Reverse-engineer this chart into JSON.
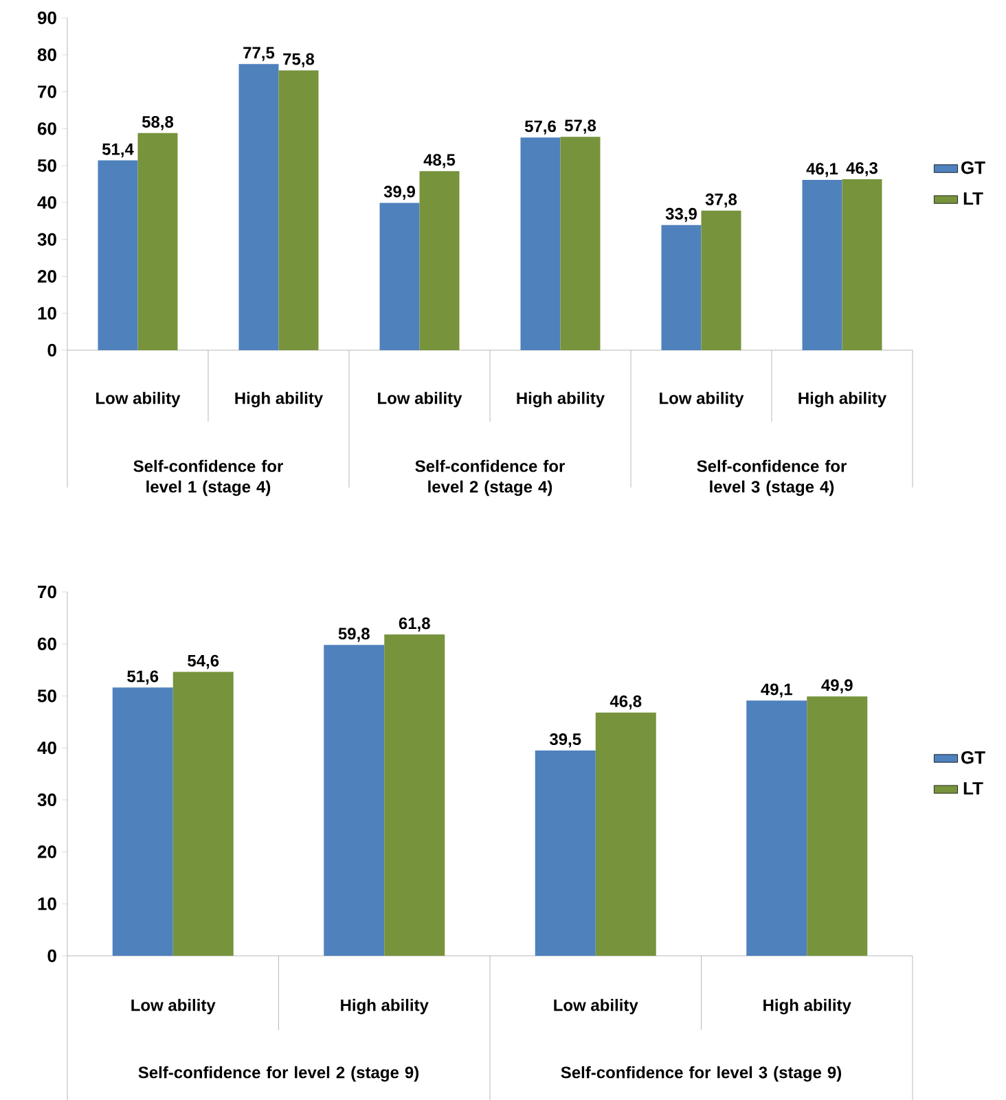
{
  "chart_data": [
    {
      "type": "bar",
      "categories": [
        "Low ability",
        "High ability",
        "Low ability",
        "High ability",
        "Low ability",
        "High ability"
      ],
      "series": [
        {
          "name": "GT",
          "color": "#4f81bd",
          "values": [
            51.4,
            77.5,
            39.9,
            57.6,
            33.9,
            46.1
          ],
          "value_labels": [
            "51,4",
            "77,5",
            "39,9",
            "57,6",
            "33,9",
            "46,1"
          ]
        },
        {
          "name": "LT",
          "color": "#77933c",
          "values": [
            58.8,
            75.8,
            48.5,
            57.8,
            37.8,
            46.3
          ],
          "value_labels": [
            "58,8",
            "75,8",
            "48,5",
            "57,8",
            "37,8",
            "46,3"
          ]
        }
      ],
      "ylim": [
        0,
        90
      ],
      "yticks": [
        0,
        10,
        20,
        30,
        40,
        50,
        60,
        70,
        80,
        90
      ],
      "legend": "right",
      "annotations": [
        "Self-confidence for level 1 (stage 4)",
        "Self-confidence for level 2 (stage 4)",
        "Self-confidence for level 3 (stage 4)"
      ]
    },
    {
      "type": "bar",
      "categories": [
        "Low ability",
        "High ability",
        "Low ability",
        "High ability"
      ],
      "series": [
        {
          "name": "GT",
          "color": "#4f81bd",
          "values": [
            51.6,
            59.8,
            39.5,
            49.1
          ],
          "value_labels": [
            "51,6",
            "59,8",
            "39,5",
            "49,1"
          ]
        },
        {
          "name": "LT",
          "color": "#77933c",
          "values": [
            54.6,
            61.8,
            46.8,
            49.9
          ],
          "value_labels": [
            "54,6",
            "61,8",
            "46,8",
            "49,9"
          ]
        }
      ],
      "ylim": [
        0,
        70
      ],
      "yticks": [
        0,
        10,
        20,
        30,
        40,
        50,
        60,
        70
      ],
      "legend": "right",
      "annotations": [
        "Self-confidence for level 2 (stage 9)",
        "Self-confidence for level 3 (stage 9)"
      ]
    }
  ]
}
